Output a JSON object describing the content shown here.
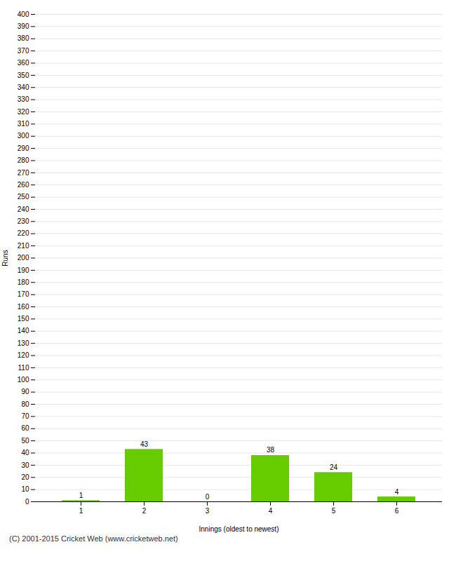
{
  "chart_data": {
    "type": "bar",
    "xlabel": "Innings (oldest to newest)",
    "ylabel": "Runs",
    "caption": "(C) 2001-2015 Cricket Web (www.cricketweb.net)",
    "categories": [
      "1",
      "2",
      "3",
      "4",
      "5",
      "6"
    ],
    "values": [
      1,
      43,
      0,
      38,
      24,
      4
    ],
    "color": "#66cc00",
    "ylim": [
      0,
      400
    ],
    "yticks": [
      0,
      10,
      20,
      30,
      40,
      50,
      60,
      70,
      80,
      90,
      100,
      110,
      120,
      130,
      140,
      150,
      160,
      170,
      180,
      190,
      200,
      210,
      220,
      230,
      240,
      250,
      260,
      270,
      280,
      290,
      300,
      310,
      320,
      330,
      340,
      350,
      360,
      370,
      380,
      390,
      400
    ],
    "grid": true,
    "data_labels": true
  }
}
